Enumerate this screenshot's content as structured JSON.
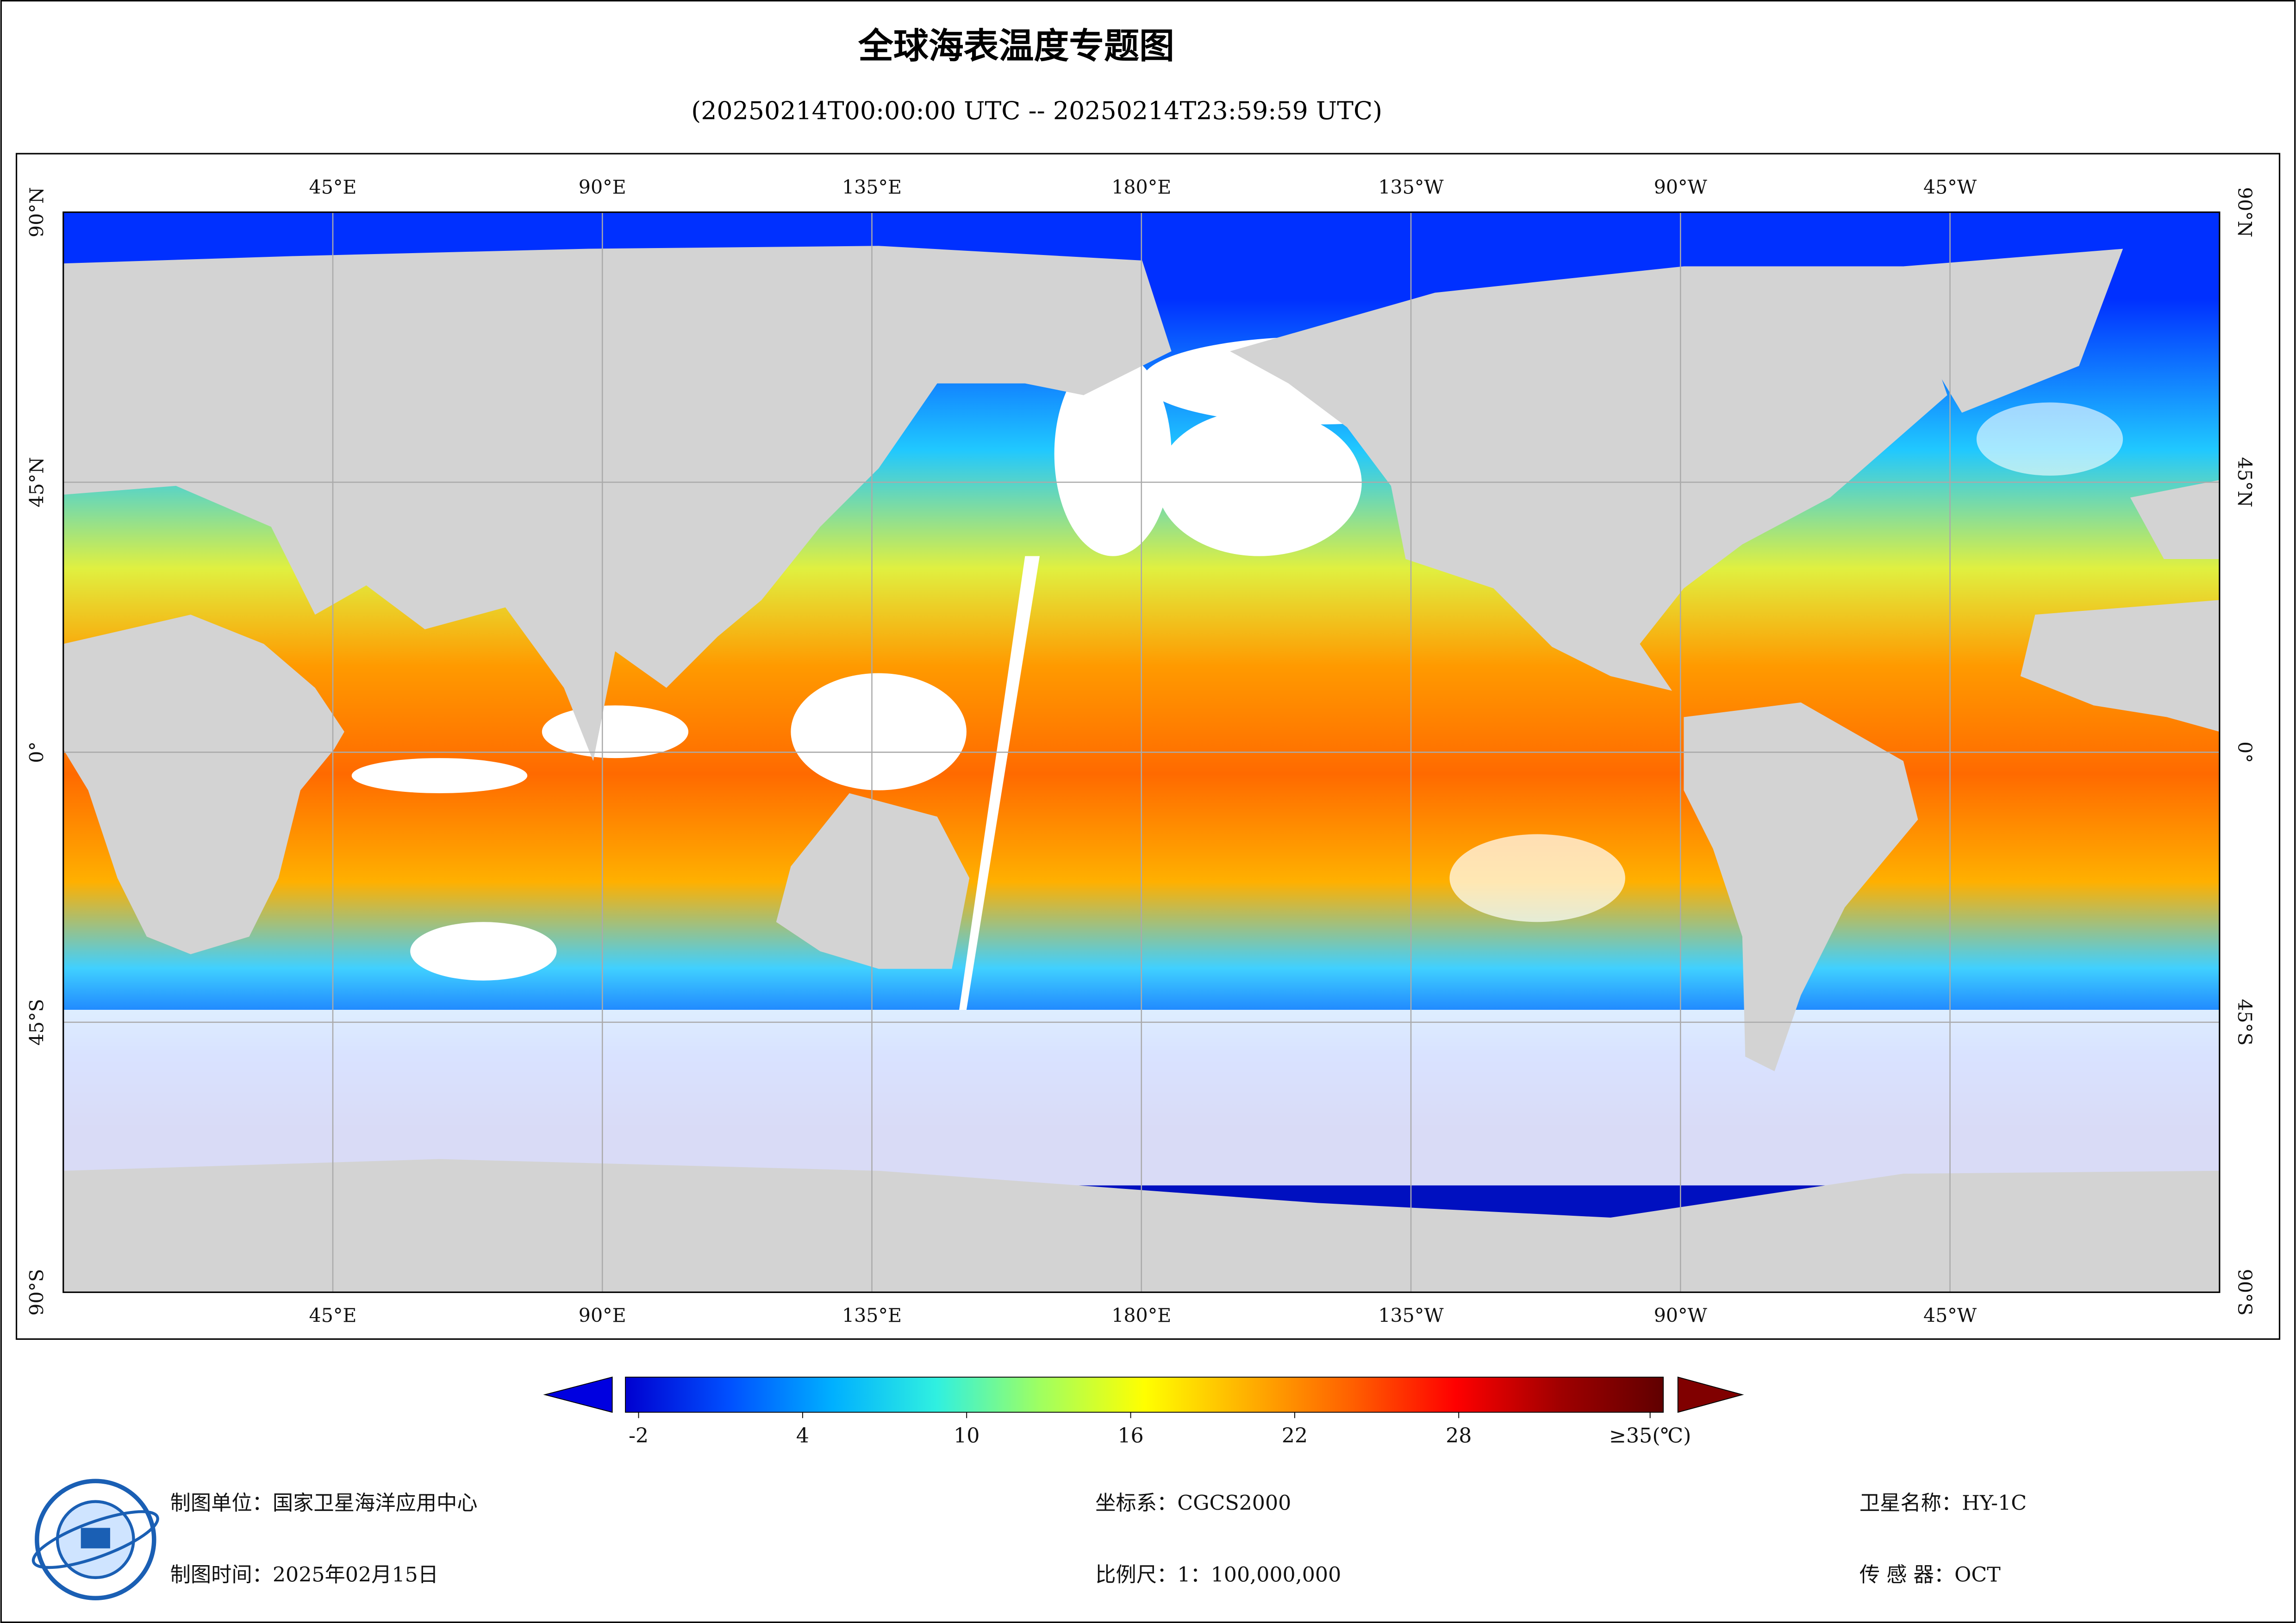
{
  "header": {
    "title": "全球海表温度专题图",
    "subtitle": "(20250214T00:00:00 UTC -- 20250214T23:59:59 UTC)"
  },
  "map": {
    "lon_labels": [
      "45°E",
      "90°E",
      "135°E",
      "180°E",
      "135°W",
      "90°W",
      "45°W"
    ],
    "lat_labels": [
      "90°N",
      "45°N",
      "0°",
      "45°S",
      "90°S"
    ]
  },
  "colorbar": {
    "ticks": [
      -2,
      4,
      10,
      16,
      22,
      28,
      {
        "value": 35,
        "label": "≥35(℃)"
      }
    ],
    "colors": [
      "#0000d0",
      "#0050ff",
      "#00b0ff",
      "#30f0e0",
      "#a0ff60",
      "#ffff00",
      "#ffb000",
      "#ff6000",
      "#ff0000",
      "#a00000",
      "#600000"
    ]
  },
  "footer": {
    "unit": "制图单位：国家卫星海洋应用中心",
    "time": "制图时间：2025年02月15日",
    "crs": "坐标系：CGCS2000",
    "scale": "比例尺：1：100,000,000",
    "satellite": "卫星名称：HY-1C",
    "sensor": "传 感 器：OCT"
  }
}
